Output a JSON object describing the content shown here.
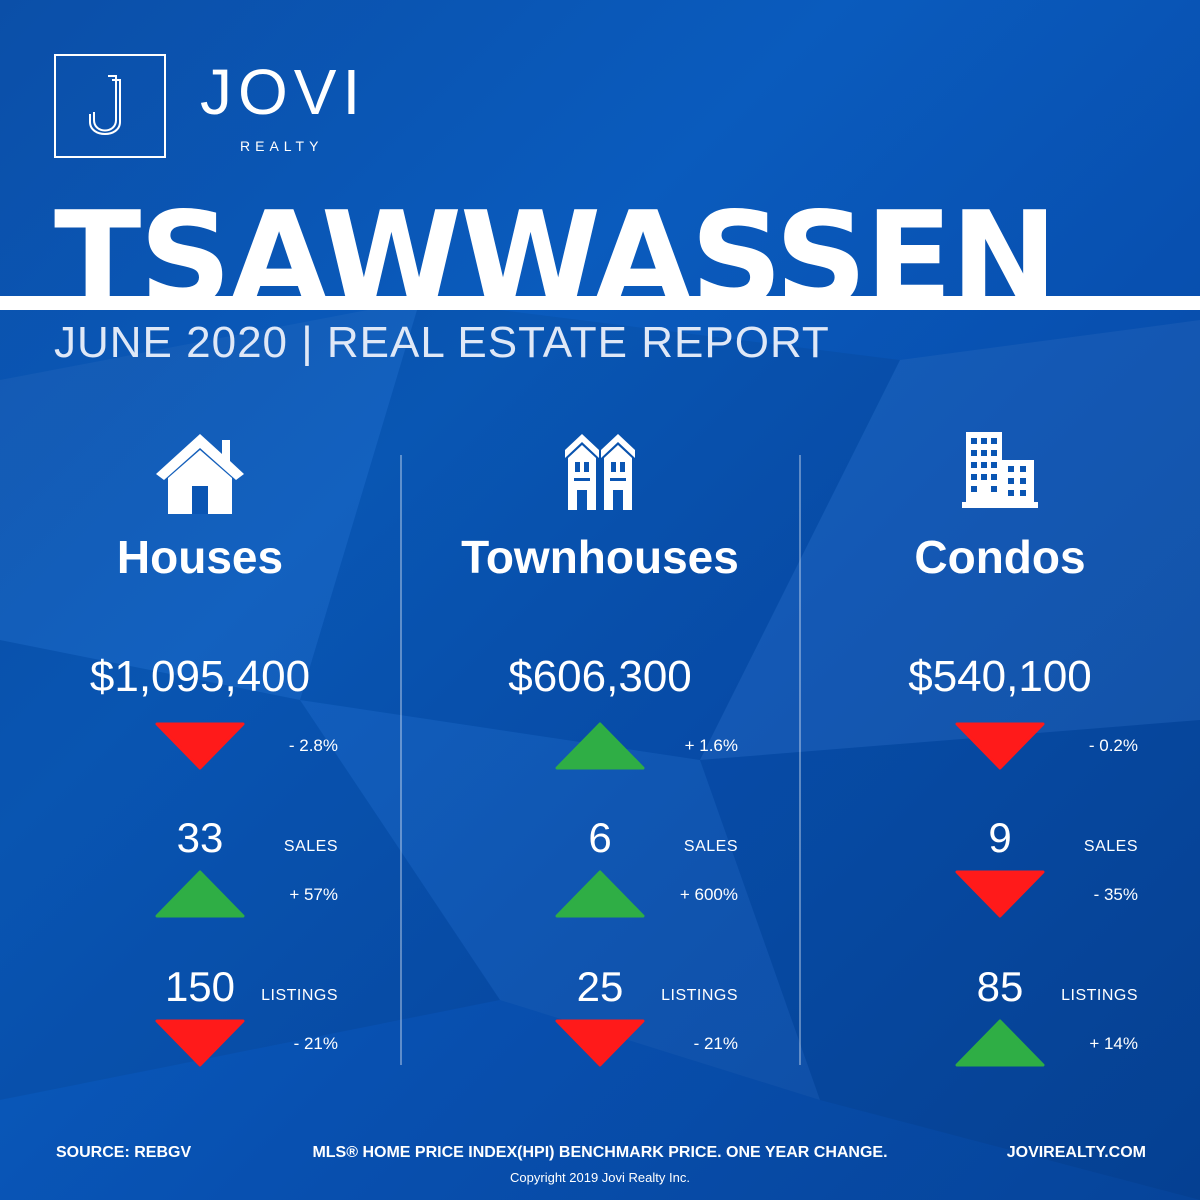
{
  "brand": {
    "name": "JOVI",
    "sub": "REALTY",
    "logo_icon": "j-monogram-icon"
  },
  "title": "TSAWWASSEN",
  "subtitle": "JUNE 2020 | REAL ESTATE REPORT",
  "colors": {
    "background": "#0a58b8",
    "up": "#2fae45",
    "down": "#ff1a1a",
    "text": "#ffffff"
  },
  "columns": [
    {
      "icon": "house-icon",
      "name": "Houses",
      "price": "$1,095,400",
      "price_change": {
        "direction": "down",
        "text": "- 2.8%"
      },
      "sales": {
        "value": "33",
        "label": "SALES",
        "direction": "up",
        "change": "+ 57%"
      },
      "listings": {
        "value": "150",
        "label": "LISTINGS",
        "direction": "down",
        "change": "- 21%"
      }
    },
    {
      "icon": "townhouse-icon",
      "name": "Townhouses",
      "price": "$606,300",
      "price_change": {
        "direction": "up",
        "text": "+ 1.6%"
      },
      "sales": {
        "value": "6",
        "label": "SALES",
        "direction": "up",
        "change": "+ 600%"
      },
      "listings": {
        "value": "25",
        "label": "LISTINGS",
        "direction": "down",
        "change": "- 21%"
      }
    },
    {
      "icon": "condo-building-icon",
      "name": "Condos",
      "price": "$540,100",
      "price_change": {
        "direction": "down",
        "text": "- 0.2%"
      },
      "sales": {
        "value": "9",
        "label": "SALES",
        "direction": "down",
        "change": "- 35%"
      },
      "listings": {
        "value": "85",
        "label": "LISTINGS",
        "direction": "up",
        "change": "+ 14%"
      }
    }
  ],
  "footer": {
    "source": "SOURCE:  REBGV",
    "note": "MLS® HOME PRICE INDEX(HPI) BENCHMARK PRICE. ONE YEAR CHANGE.",
    "website": "JOVIREALTY.COM",
    "copyright": "Copyright 2019 Jovi Realty Inc."
  }
}
